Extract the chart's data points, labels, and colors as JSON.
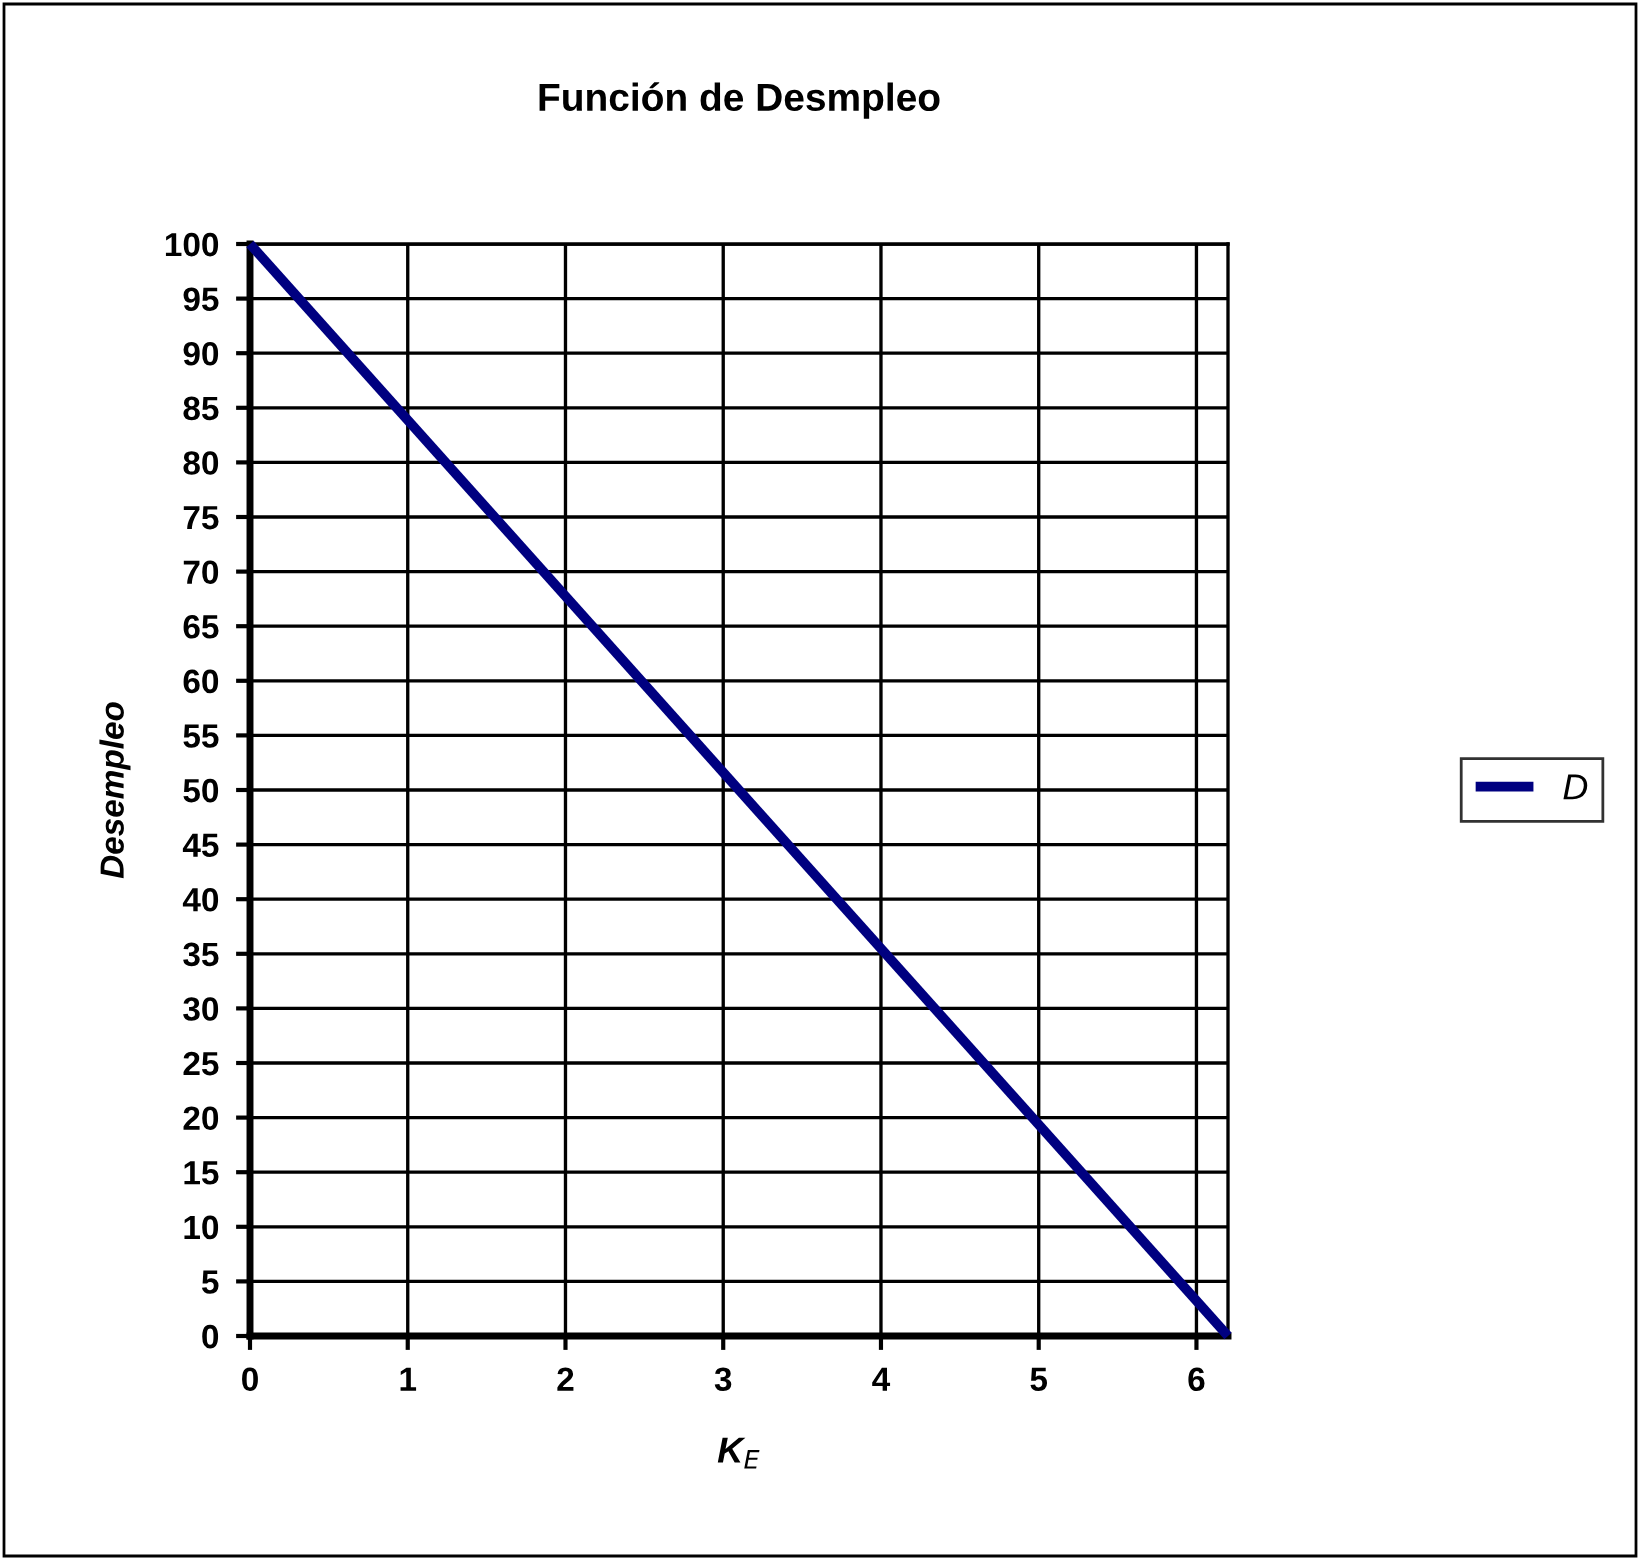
{
  "chart_data": {
    "type": "line",
    "title": "Función de Desmpleo",
    "xlabel": "K$_{E}$",
    "ylabel": "Desempleo",
    "x": [
      0,
      6.2
    ],
    "series": [
      {
        "name": "D",
        "color": "#000080",
        "values": [
          100,
          0
        ]
      }
    ],
    "xlim": [
      0,
      6.2
    ],
    "xticks": [
      0,
      1,
      2,
      3,
      4,
      5,
      6
    ],
    "ylim": [
      0,
      100
    ],
    "yticks": [
      0,
      5,
      10,
      15,
      20,
      25,
      30,
      35,
      40,
      45,
      50,
      55,
      60,
      65,
      70,
      75,
      80,
      85,
      90,
      95,
      100
    ],
    "grid": true,
    "legend": "right",
    "marker": "none",
    "line_style": "solid"
  }
}
